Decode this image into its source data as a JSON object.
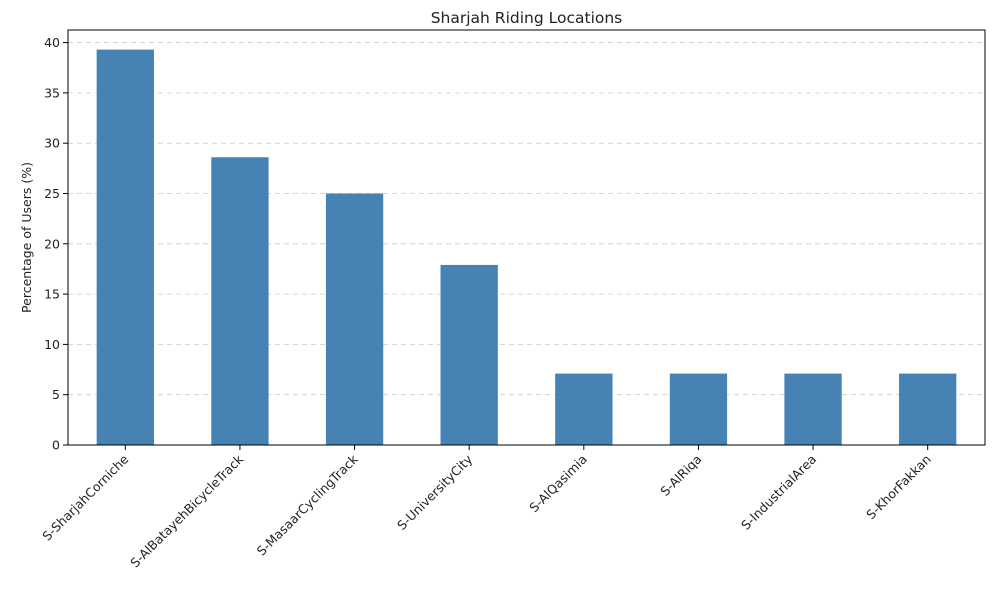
{
  "chart_data": {
    "type": "bar",
    "title": "Sharjah Riding Locations",
    "xlabel": "",
    "ylabel": "Percentage of Users (%)",
    "categories": [
      "S-SharjahCorniche",
      "S-AlBatayehBicycleTrack",
      "S-MasaarCyclingTrack",
      "S-UniversityCity",
      "S-AlQasimia",
      "S-AlRiqa",
      "S-IndustrialArea",
      "S-KhorFakkan"
    ],
    "values": [
      39.3,
      28.6,
      25.0,
      17.9,
      7.1,
      7.1,
      7.1,
      7.1
    ],
    "ylim": [
      0,
      41.25
    ],
    "yticks": [
      0,
      5,
      10,
      15,
      20,
      25,
      30,
      35,
      40
    ],
    "grid": "y-dashed",
    "bar_color": "#4682b4",
    "grid_color": "#cccccc"
  }
}
